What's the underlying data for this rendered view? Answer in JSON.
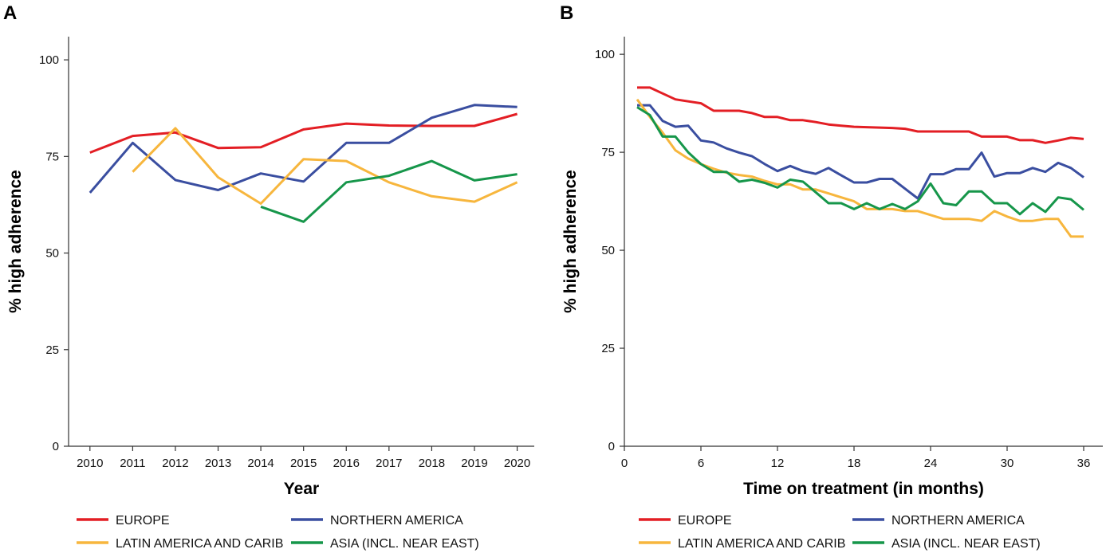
{
  "colors": {
    "europe": "#e31e24",
    "northern_america": "#3a4ea0",
    "latin_america": "#f7b63d",
    "asia": "#16964a"
  },
  "chart_data": [
    {
      "panel": "A",
      "type": "line",
      "title": "",
      "xlabel": "Year",
      "ylabel": "% high adherence",
      "xlim": [
        2009.5,
        2020.4
      ],
      "ylim": [
        0,
        106
      ],
      "xticks": [
        2010,
        2011,
        2012,
        2013,
        2014,
        2015,
        2016,
        2017,
        2018,
        2019,
        2020
      ],
      "yticks": [
        0,
        25,
        50,
        75,
        100
      ],
      "series": [
        {
          "name": "EUROPE",
          "color_key": "europe",
          "x": [
            2010,
            2011,
            2012,
            2013,
            2014,
            2015,
            2016,
            2017,
            2018,
            2019,
            2020
          ],
          "y": [
            76,
            80.3,
            81.2,
            77.2,
            77.4,
            82,
            83.5,
            83,
            82.9,
            82.9,
            86
          ]
        },
        {
          "name": "NORTHERN AMERICA",
          "color_key": "northern_america",
          "x": [
            2010,
            2011,
            2012,
            2013,
            2014,
            2015,
            2016,
            2017,
            2018,
            2019,
            2020
          ],
          "y": [
            65.6,
            78.5,
            68.9,
            66.3,
            70.6,
            68.5,
            78.5,
            78.5,
            85,
            88.3,
            87.8
          ]
        },
        {
          "name": "LATIN AMERICA AND CARIB",
          "color_key": "latin_america",
          "x": [
            2011,
            2012,
            2013,
            2014,
            2015,
            2016,
            2017,
            2018,
            2019,
            2020
          ],
          "y": [
            71,
            82.3,
            69.6,
            62.8,
            74.3,
            73.8,
            68.3,
            64.7,
            63.3,
            68.3
          ]
        },
        {
          "name": "ASIA (INCL. NEAR EAST)",
          "color_key": "asia",
          "x": [
            2014,
            2015,
            2016,
            2017,
            2018,
            2019,
            2020
          ],
          "y": [
            62,
            58.1,
            68.3,
            70,
            73.8,
            68.8,
            70.4
          ]
        }
      ],
      "legend": "bottom"
    },
    {
      "panel": "B",
      "type": "line",
      "title": "",
      "xlabel": "Time on treatment (in months)",
      "ylabel": "% high adherence",
      "xlim": [
        0,
        37.5
      ],
      "ylim": [
        0,
        104.5
      ],
      "xticks": [
        0,
        6,
        12,
        18,
        24,
        30,
        36
      ],
      "yticks": [
        0,
        25,
        50,
        75,
        100
      ],
      "series": [
        {
          "name": "EUROPE",
          "color_key": "europe",
          "x": [
            1,
            2,
            3,
            4,
            5,
            6,
            7,
            8,
            9,
            10,
            11,
            12,
            13,
            14,
            15,
            16,
            17,
            18,
            19,
            20,
            21,
            22,
            23,
            24,
            25,
            26,
            27,
            28,
            29,
            30,
            31,
            32,
            33,
            34,
            35,
            36
          ],
          "y": [
            91.5,
            91.5,
            90,
            88.5,
            88,
            87.5,
            85.6,
            85.6,
            85.6,
            85,
            84,
            84,
            83.2,
            83.2,
            82.7,
            82.1,
            81.8,
            81.5,
            81.4,
            81.3,
            81.2,
            81,
            80.3,
            80.3,
            80.3,
            80.3,
            80.3,
            79,
            79,
            79,
            78.1,
            78.1,
            77.4,
            78,
            78.7,
            78.4
          ]
        },
        {
          "name": "NORTHERN AMERICA",
          "color_key": "northern_america",
          "x": [
            1,
            2,
            3,
            4,
            5,
            6,
            7,
            8,
            9,
            10,
            11,
            12,
            13,
            14,
            15,
            16,
            17,
            18,
            19,
            20,
            21,
            22,
            23,
            24,
            25,
            26,
            27,
            28,
            29,
            30,
            31,
            32,
            33,
            34,
            35,
            36
          ],
          "y": [
            87,
            87,
            83,
            81.5,
            81.8,
            78,
            77.5,
            76,
            74.9,
            74,
            72,
            70.2,
            71.5,
            70.2,
            69.5,
            71,
            69.1,
            67.3,
            67.3,
            68.2,
            68.2,
            65.7,
            63.2,
            69.4,
            69.4,
            70.7,
            70.7,
            74.9,
            68.8,
            69.7,
            69.7,
            71,
            70,
            72.3,
            71,
            68.6
          ]
        },
        {
          "name": "LATIN AMERICA AND CARIB",
          "color_key": "latin_america",
          "x": [
            1,
            2,
            3,
            4,
            5,
            6,
            7,
            8,
            9,
            10,
            11,
            12,
            13,
            14,
            15,
            16,
            17,
            18,
            19,
            20,
            21,
            22,
            23,
            24,
            25,
            26,
            27,
            28,
            29,
            30,
            31,
            32,
            33,
            34,
            35,
            36
          ],
          "y": [
            88.5,
            84,
            80,
            75.5,
            73.4,
            72,
            70.8,
            69.8,
            69.2,
            68.8,
            67.7,
            66.8,
            66.8,
            65.5,
            65.5,
            64.5,
            63.5,
            62.5,
            60.5,
            60.5,
            60.5,
            60,
            60,
            59,
            58,
            58,
            58,
            57.5,
            60,
            58.6,
            57.5,
            57.5,
            58,
            58,
            53.5,
            53.5
          ]
        },
        {
          "name": "ASIA (INCL. NEAR EAST)",
          "color_key": "asia",
          "x": [
            1,
            2,
            3,
            4,
            5,
            6,
            7,
            8,
            9,
            10,
            11,
            12,
            13,
            14,
            15,
            16,
            17,
            18,
            19,
            20,
            21,
            22,
            23,
            24,
            25,
            26,
            27,
            28,
            29,
            30,
            31,
            32,
            33,
            34,
            35,
            36
          ],
          "y": [
            86.5,
            84.5,
            79,
            79,
            75,
            72,
            70,
            70,
            67.5,
            68,
            67.2,
            66,
            68,
            67.5,
            64.8,
            62,
            62,
            60.5,
            62,
            60.5,
            61.8,
            60.5,
            62.5,
            67,
            62,
            61.5,
            65,
            65,
            62,
            62,
            59.2,
            62,
            59.8,
            63.5,
            63,
            60.3
          ]
        }
      ],
      "legend": "bottom"
    }
  ]
}
